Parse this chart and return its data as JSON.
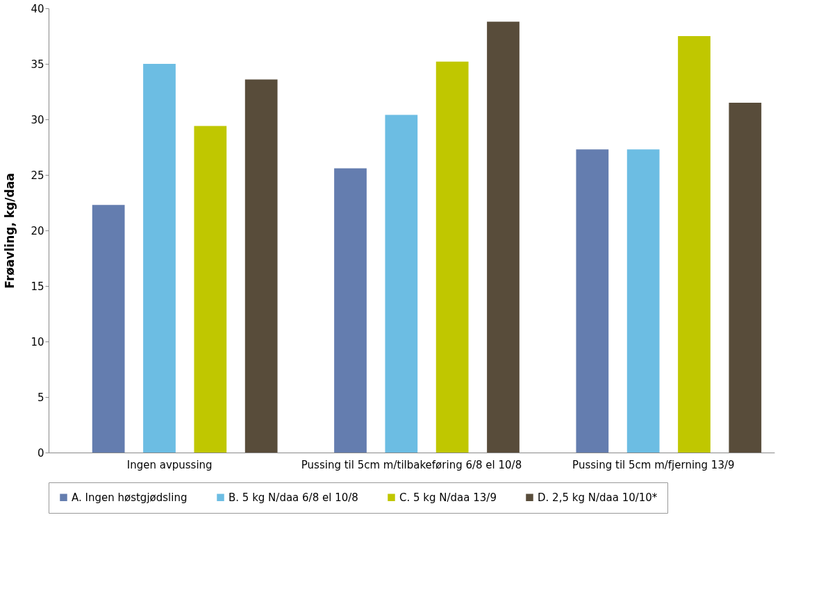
{
  "chart_data": {
    "type": "bar",
    "ylabel": "Frøavling, kg/daa",
    "categories": [
      "Ingen avpussing",
      "Pussing til 5cm m/tilbakeføring 6/8 el 10/8",
      "Pussing til 5cm m/fjerning 13/9"
    ],
    "series": [
      {
        "name": "A. Ingen høstgjødsling",
        "color": "#647daf",
        "values": [
          22.3,
          25.6,
          27.3
        ]
      },
      {
        "name": "B. 5 kg N/daa 6/8 el 10/8",
        "color": "#6cbde3",
        "values": [
          35.0,
          30.4,
          27.3
        ]
      },
      {
        "name": "C. 5 kg N/daa 13/9",
        "color": "#c0c700",
        "values": [
          29.4,
          35.2,
          37.5
        ]
      },
      {
        "name": "D. 2,5 kg N/daa 10/10*",
        "color": "#584c3a",
        "values": [
          33.6,
          38.8,
          31.5
        ]
      }
    ],
    "ylim": [
      0,
      40
    ],
    "yticks": [
      0,
      5,
      10,
      15,
      20,
      25,
      30,
      35,
      40
    ],
    "grid": false,
    "legend": "bottom"
  }
}
